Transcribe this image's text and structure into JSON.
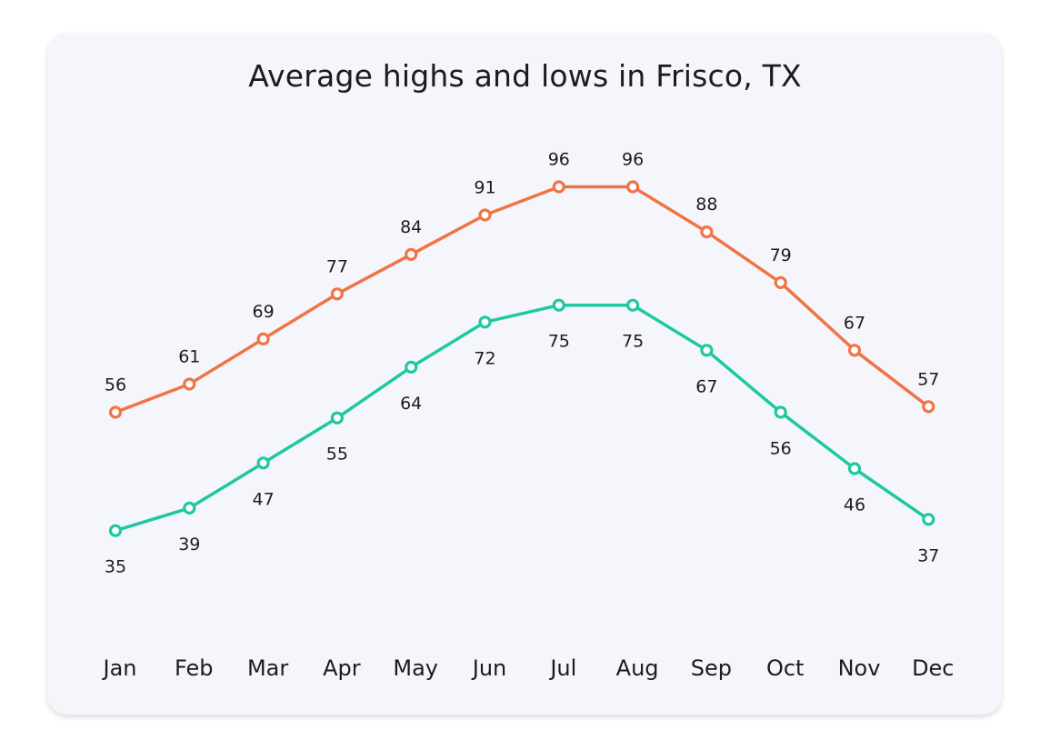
{
  "chart_data": {
    "type": "line",
    "title": "Average highs and lows in Frisco, TX",
    "categories": [
      "Jan",
      "Feb",
      "Mar",
      "Apr",
      "May",
      "Jun",
      "Jul",
      "Aug",
      "Sep",
      "Oct",
      "Nov",
      "Dec"
    ],
    "series": [
      {
        "key": "highs",
        "color": "#f07445",
        "values": [
          56,
          61,
          69,
          77,
          84,
          91,
          96,
          96,
          88,
          79,
          67,
          57
        ]
      },
      {
        "key": "lows",
        "color": "#1fc8a0",
        "values": [
          35,
          39,
          47,
          55,
          64,
          72,
          75,
          75,
          67,
          56,
          46,
          37
        ]
      }
    ],
    "xlabel": "",
    "ylabel": "",
    "grid": false,
    "legend": "none",
    "data_labels": true
  }
}
